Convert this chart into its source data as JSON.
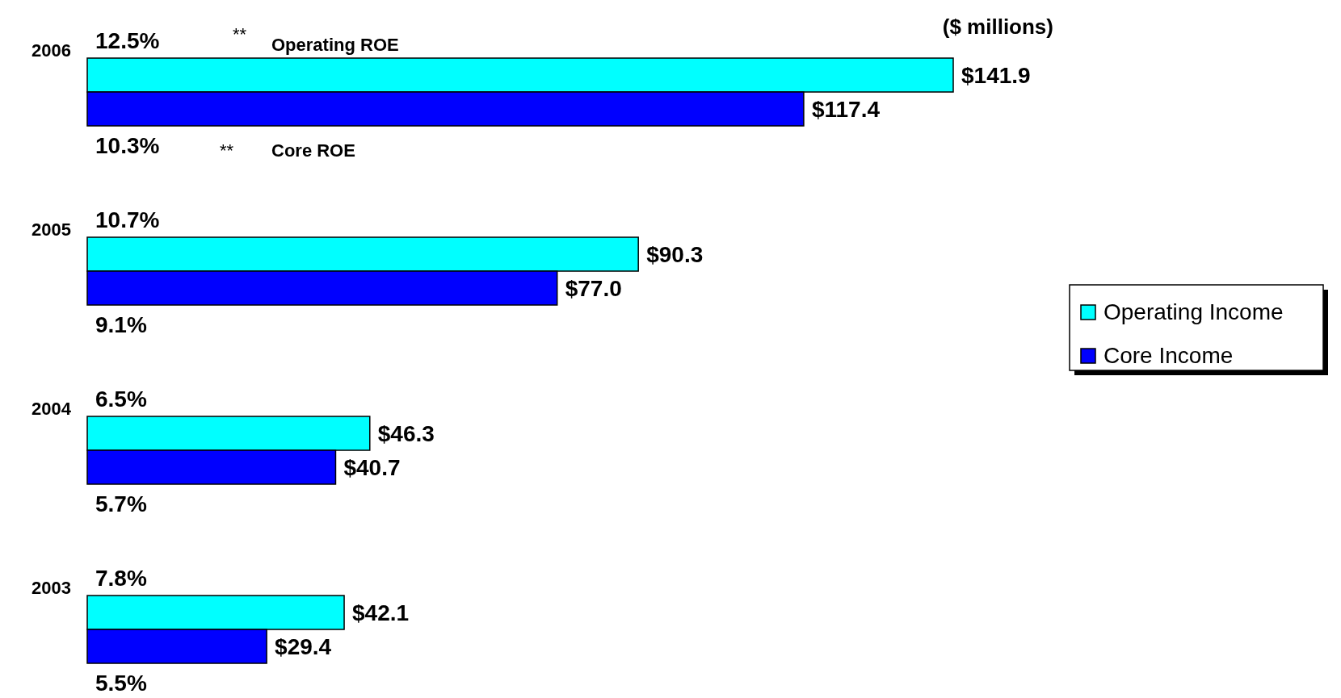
{
  "chart_data": {
    "type": "bar",
    "orientation": "horizontal",
    "categories": [
      "2006",
      "2005",
      "2004",
      "2003"
    ],
    "series": [
      {
        "name": "Operating Income",
        "color": "#00ffff",
        "values": [
          141.9,
          90.3,
          46.3,
          42.1
        ],
        "value_labels": [
          "$141.9",
          "$90.3",
          "$46.3",
          "$42.1"
        ]
      },
      {
        "name": "Core Income",
        "color": "#0000ff",
        "values": [
          117.4,
          77.0,
          40.7,
          29.4
        ],
        "value_labels": [
          "$117.4",
          "$77.0",
          "$40.7",
          "$29.4"
        ]
      }
    ],
    "legend": "right",
    "tick_labels": "y",
    "annotations": [
      "($ millions)",
      "**",
      "Operating ROE",
      "**",
      "Core ROE",
      "12.5%",
      "10.3%",
      "10.7%",
      "9.1%",
      "6.5%",
      "5.7%",
      "7.8%",
      "5.5%"
    ]
  }
}
